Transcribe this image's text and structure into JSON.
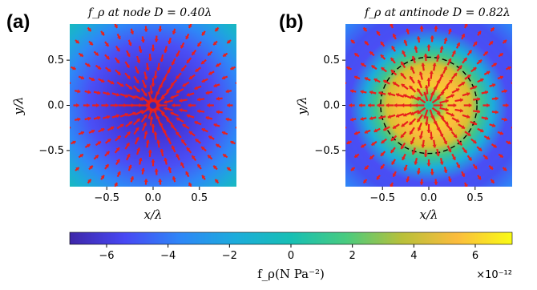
{
  "chart_data": [
    {
      "type": "heatmap",
      "panel_label": "(a)",
      "title": "f_ρ at node D = 0.40λ",
      "xlabel": "x/λ",
      "ylabel": "y/λ",
      "xlim": [
        -0.9,
        0.9
      ],
      "ylim": [
        -0.9,
        0.9
      ],
      "xticks": [
        "-0.5",
        "0.0",
        "0.5"
      ],
      "yticks": [
        "0.5",
        "0.0",
        "-0.5"
      ],
      "field": {
        "center_value": -7.2,
        "edge_value": -0.6,
        "ring_radius": null
      },
      "vectors": {
        "direction": "inward",
        "color": "#e8201d",
        "center_ring": true
      }
    },
    {
      "type": "heatmap",
      "panel_label": "(b)",
      "title": "f_ρ at antinode D = 0.82λ",
      "xlabel": "x/λ",
      "ylabel": "y/λ",
      "xlim": [
        -0.9,
        0.9
      ],
      "ylim": [
        -0.9,
        0.9
      ],
      "xticks": [
        "-0.5",
        "0.0",
        "0.5"
      ],
      "yticks": [
        "0.5",
        "0.0",
        "-0.5"
      ],
      "field": {
        "center_value": 0.5,
        "peak_value": 7.0,
        "edge_value": -4.0,
        "ring_radius": 0.52
      },
      "vectors": {
        "direction": "outward",
        "color": "#e8201d",
        "center_ring": false
      }
    }
  ],
  "colorbar": {
    "label": "f_ρ(N Pa⁻²)",
    "range": [
      -7.2,
      7.2
    ],
    "ticks": [
      -6,
      -4,
      -2,
      0,
      2,
      4,
      6
    ],
    "tick_labels": [
      "−6",
      "−4",
      "−2",
      "0",
      "2",
      "4",
      "6"
    ],
    "multiplier": "×10⁻¹²",
    "colormap": [
      "#3e26a8",
      "#4748f4",
      "#2e87f7",
      "#1cacdb",
      "#17bfb4",
      "#49cb7f",
      "#b8c03a",
      "#fbbc3d",
      "#f9fb15"
    ]
  }
}
